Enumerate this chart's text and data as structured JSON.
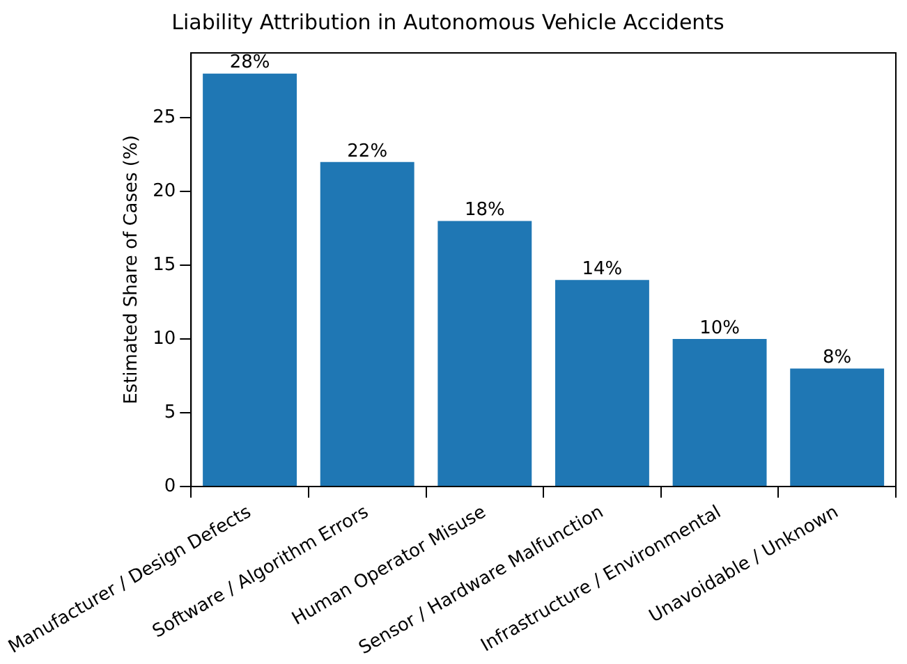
{
  "chart_data": {
    "type": "bar",
    "title": "Liability Attribution in Autonomous Vehicle Accidents",
    "ylabel": "Estimated Share of Cases (%)",
    "categories": [
      "Manufacturer / Design Defects",
      "Software / Algorithm Errors",
      "Human Operator Misuse",
      "Sensor / Hardware Malfunction",
      "Infrastructure / Environmental",
      "Unavoidable / Unknown"
    ],
    "values": [
      28,
      22,
      18,
      14,
      10,
      8
    ],
    "value_labels": [
      "28%",
      "22%",
      "18%",
      "14%",
      "10%",
      "8%"
    ],
    "color": "#1f77b4",
    "ylim": [
      0,
      29.4
    ],
    "yticks": [
      0,
      5,
      10,
      15,
      20,
      25
    ],
    "grid": false,
    "legend": false
  }
}
